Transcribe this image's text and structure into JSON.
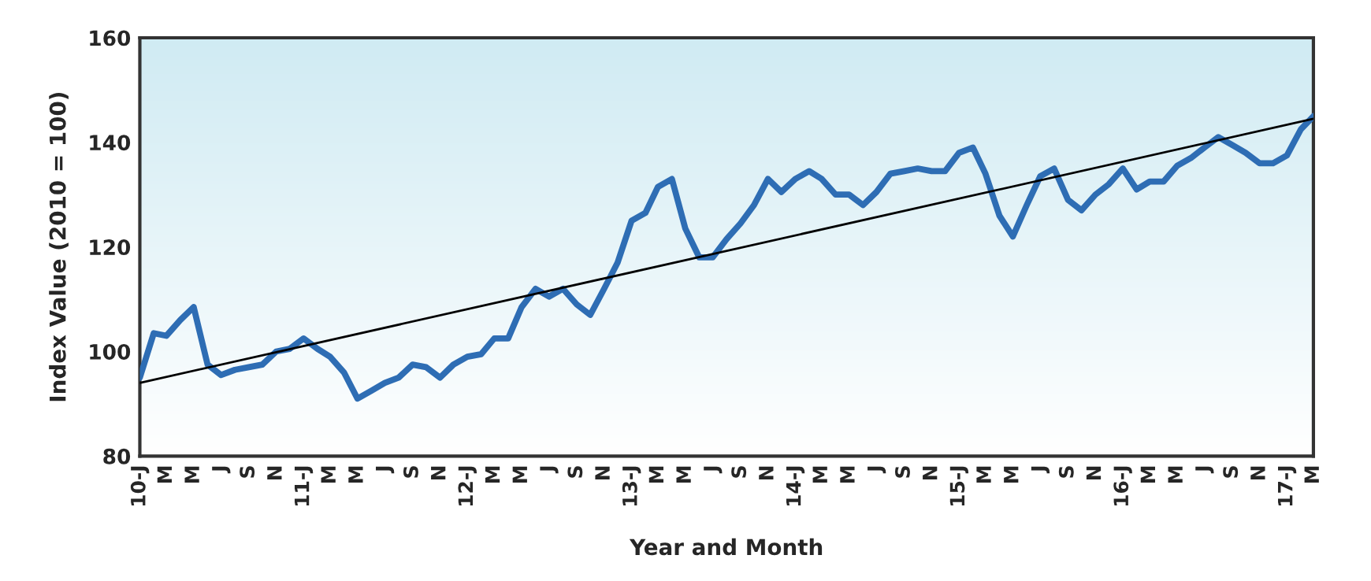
{
  "chart_data": {
    "type": "line",
    "xlabel": "Year and Month",
    "ylabel": "Index Value (2010 = 100)",
    "xlim": [
      "2010-01",
      "2017-03"
    ],
    "ylim": [
      80,
      160
    ],
    "yticks": [
      80,
      100,
      120,
      140,
      160
    ],
    "xticks": [
      {
        "value": "2010-01",
        "label": "10-J"
      },
      {
        "value": "2010-03",
        "label": "M"
      },
      {
        "value": "2010-05",
        "label": "M"
      },
      {
        "value": "2010-07",
        "label": "J"
      },
      {
        "value": "2010-09",
        "label": "S"
      },
      {
        "value": "2010-11",
        "label": "N"
      },
      {
        "value": "2011-01",
        "label": "11-J"
      },
      {
        "value": "2011-03",
        "label": "M"
      },
      {
        "value": "2011-05",
        "label": "M"
      },
      {
        "value": "2011-07",
        "label": "J"
      },
      {
        "value": "2011-09",
        "label": "S"
      },
      {
        "value": "2011-11",
        "label": "N"
      },
      {
        "value": "2012-01",
        "label": "12-J"
      },
      {
        "value": "2012-03",
        "label": "M"
      },
      {
        "value": "2012-05",
        "label": "M"
      },
      {
        "value": "2012-07",
        "label": "J"
      },
      {
        "value": "2012-09",
        "label": "S"
      },
      {
        "value": "2012-11",
        "label": "N"
      },
      {
        "value": "2013-01",
        "label": "13-J"
      },
      {
        "value": "2013-03",
        "label": "M"
      },
      {
        "value": "2013-05",
        "label": "M"
      },
      {
        "value": "2013-07",
        "label": "J"
      },
      {
        "value": "2013-09",
        "label": "S"
      },
      {
        "value": "2013-11",
        "label": "N"
      },
      {
        "value": "2014-01",
        "label": "14-J"
      },
      {
        "value": "2014-03",
        "label": "M"
      },
      {
        "value": "2014-05",
        "label": "M"
      },
      {
        "value": "2014-07",
        "label": "J"
      },
      {
        "value": "2014-09",
        "label": "S"
      },
      {
        "value": "2014-11",
        "label": "N"
      },
      {
        "value": "2015-01",
        "label": "15-J"
      },
      {
        "value": "2015-03",
        "label": "M"
      },
      {
        "value": "2015-05",
        "label": "M"
      },
      {
        "value": "2015-07",
        "label": "J"
      },
      {
        "value": "2015-09",
        "label": "S"
      },
      {
        "value": "2015-11",
        "label": "N"
      },
      {
        "value": "2016-01",
        "label": "16-J"
      },
      {
        "value": "2016-03",
        "label": "M"
      },
      {
        "value": "2016-05",
        "label": "M"
      },
      {
        "value": "2016-07",
        "label": "J"
      },
      {
        "value": "2016-09",
        "label": "S"
      },
      {
        "value": "2016-11",
        "label": "N"
      },
      {
        "value": "2017-01",
        "label": "17-J"
      },
      {
        "value": "2017-03",
        "label": "M"
      }
    ],
    "grid": false,
    "legend": false,
    "marker": "none",
    "line_style": "solid",
    "series": [
      {
        "color": "#2e6db4",
        "x": [
          "2010-01",
          "2010-02",
          "2010-03",
          "2010-04",
          "2010-05",
          "2010-06",
          "2010-07",
          "2010-08",
          "2010-09",
          "2010-10",
          "2010-11",
          "2010-12",
          "2011-01",
          "2011-02",
          "2011-03",
          "2011-04",
          "2011-05",
          "2011-06",
          "2011-07",
          "2011-08",
          "2011-09",
          "2011-10",
          "2011-11",
          "2011-12",
          "2012-01",
          "2012-02",
          "2012-03",
          "2012-04",
          "2012-05",
          "2012-06",
          "2012-07",
          "2012-08",
          "2012-09",
          "2012-10",
          "2012-11",
          "2012-12",
          "2013-01",
          "2013-02",
          "2013-03",
          "2013-04",
          "2013-05",
          "2013-06",
          "2013-07",
          "2013-08",
          "2013-09",
          "2013-10",
          "2013-11",
          "2013-12",
          "2014-01",
          "2014-02",
          "2014-03",
          "2014-04",
          "2014-05",
          "2014-06",
          "2014-07",
          "2014-08",
          "2014-09",
          "2014-10",
          "2014-11",
          "2014-12",
          "2015-01",
          "2015-02",
          "2015-03",
          "2015-04",
          "2015-05",
          "2015-06",
          "2015-07",
          "2015-08",
          "2015-09",
          "2015-10",
          "2015-11",
          "2015-12",
          "2016-01",
          "2016-02",
          "2016-03",
          "2016-04",
          "2016-05",
          "2016-06",
          "2016-07",
          "2016-08",
          "2016-09",
          "2016-10",
          "2016-11",
          "2016-12",
          "2017-01",
          "2017-02",
          "2017-03"
        ],
        "values": [
          95,
          103.5,
          103,
          106,
          108.5,
          97.5,
          95.5,
          96.5,
          97,
          97.5,
          100,
          100.5,
          102.5,
          100.5,
          99,
          96,
          91,
          92.5,
          94,
          95,
          97.5,
          97,
          95,
          97.5,
          99,
          99.5,
          102.5,
          102.5,
          108.5,
          112,
          110.5,
          112,
          109,
          107,
          112,
          117,
          125,
          126.5,
          131.5,
          133,
          123.5,
          118,
          118,
          121.5,
          124.5,
          128,
          133,
          130.5,
          133,
          134.5,
          133,
          130,
          130,
          128,
          130.5,
          134,
          134.5,
          135,
          134.5,
          134.5,
          138,
          139,
          134,
          126,
          122,
          128,
          133.5,
          135,
          129,
          127,
          130,
          132,
          135,
          131,
          132.5,
          132.5,
          135.5,
          137,
          139,
          141,
          139.5,
          138,
          136,
          136,
          137.5,
          142.5,
          145
        ]
      },
      {
        "type": "line",
        "color": "#000000",
        "x": [
          "2010-01",
          "2017-03"
        ],
        "values": [
          94,
          144.5
        ]
      }
    ]
  }
}
